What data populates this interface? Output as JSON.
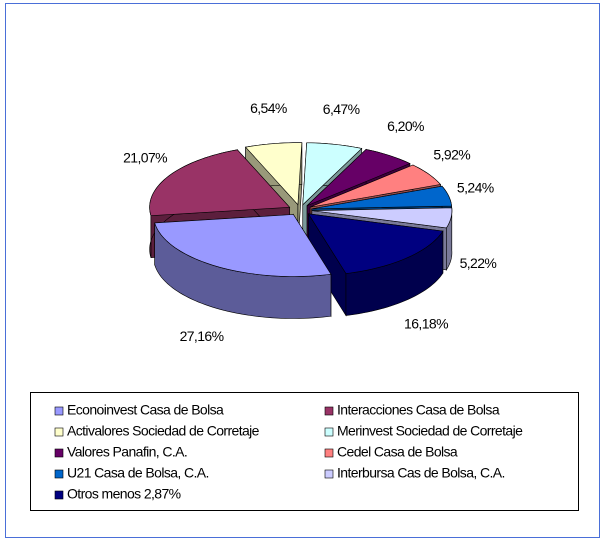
{
  "chart_data": {
    "type": "pie",
    "categories": [
      "Econoinvest Casa de Bolsa",
      "Interacciones Casa de Bolsa",
      "Activalores Sociedad de Corretaje",
      "Merinvest Sociedad de Corretaje",
      "Valores Panafin, C.A.",
      "Cedel Casa de Bolsa",
      "U21 Casa de Bolsa, C.A.",
      "Interbursa Cas de Bolsa, C.A.",
      "Otros menos 2,87%"
    ],
    "values": [
      27.16,
      21.07,
      6.54,
      6.47,
      6.2,
      5.92,
      5.24,
      5.22,
      16.18
    ],
    "value_labels": [
      "27,16%",
      "21,07%",
      "6,54%",
      "6,47%",
      "6,20%",
      "5,92%",
      "5,24%",
      "5,22%",
      "16,18%"
    ],
    "colors": [
      "#9999ff",
      "#993366",
      "#ffffcc",
      "#ccffff",
      "#660066",
      "#ff8080",
      "#0066cc",
      "#ccccff",
      "#000080"
    ],
    "legend": "bottom"
  }
}
